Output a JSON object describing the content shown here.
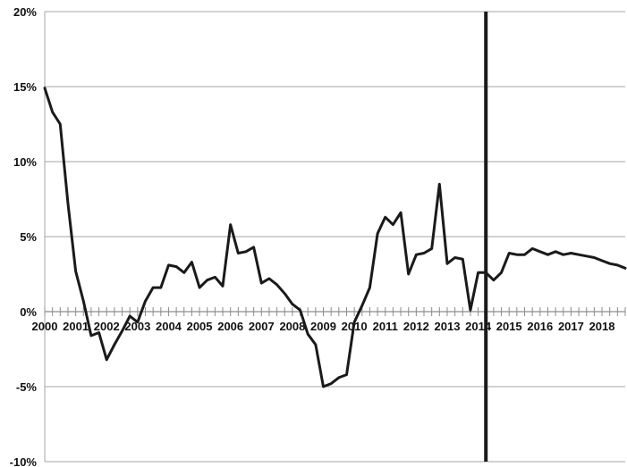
{
  "chart_data": {
    "type": "line",
    "title": "",
    "xlabel": "",
    "ylabel": "",
    "ylim": [
      -0.1,
      0.2
    ],
    "xlim": [
      2000.0,
      2018.75
    ],
    "grid": "horizontal",
    "y_ticks": [
      "20%",
      "15%",
      "10%",
      "5%",
      "0%",
      "-5%",
      "-10%"
    ],
    "x_ticks": [
      "2000",
      "2001",
      "2002",
      "2003",
      "2004",
      "2005",
      "2006",
      "2007",
      "2008",
      "2009",
      "2010",
      "2011",
      "2012",
      "2013",
      "2014",
      "2015",
      "2016",
      "2017",
      "2018"
    ],
    "vertical_marker_x": 2014.25,
    "line_color": "#1a1a1a",
    "series": [
      {
        "x": [
          2000.0,
          2000.25,
          2000.5,
          2000.75,
          2001.0,
          2001.25,
          2001.5,
          2001.75,
          2002.0,
          2002.25,
          2002.5,
          2002.75,
          2003.0,
          2003.25,
          2003.5,
          2003.75,
          2004.0,
          2004.25,
          2004.5,
          2004.75,
          2005.0,
          2005.25,
          2005.5,
          2005.75,
          2006.0,
          2006.25,
          2006.5,
          2006.75,
          2007.0,
          2007.25,
          2007.5,
          2007.75,
          2008.0,
          2008.25,
          2008.5,
          2008.75,
          2009.0,
          2009.25,
          2009.5,
          2009.75,
          2010.0,
          2010.25,
          2010.5,
          2010.75,
          2011.0,
          2011.25,
          2011.5,
          2011.75,
          2012.0,
          2012.25,
          2012.5,
          2012.75,
          2013.0,
          2013.25,
          2013.5,
          2013.75,
          2014.0,
          2014.25,
          2014.5,
          2014.75,
          2015.0,
          2015.25,
          2015.5,
          2015.75,
          2016.0,
          2016.25,
          2016.5,
          2016.75,
          2017.0,
          2017.25,
          2017.5,
          2017.75,
          2018.0,
          2018.25,
          2018.5,
          2018.75
        ],
        "values": [
          0.149,
          0.133,
          0.125,
          0.072,
          0.027,
          0.007,
          -0.016,
          -0.014,
          -0.032,
          -0.022,
          -0.013,
          -0.003,
          -0.007,
          0.007,
          0.016,
          0.016,
          0.031,
          0.03,
          0.026,
          0.033,
          0.016,
          0.021,
          0.023,
          0.017,
          0.058,
          0.039,
          0.04,
          0.043,
          0.019,
          0.022,
          0.018,
          0.012,
          0.005,
          0.001,
          -0.015,
          -0.022,
          -0.05,
          -0.048,
          -0.044,
          -0.042,
          -0.007,
          0.004,
          0.016,
          0.052,
          0.063,
          0.058,
          0.066,
          0.025,
          0.038,
          0.039,
          0.042,
          0.085,
          0.032,
          0.036,
          0.035,
          0.001,
          0.026,
          0.026,
          0.021,
          0.026,
          0.039,
          0.038,
          0.038,
          0.042,
          0.04,
          0.038,
          0.04,
          0.038,
          0.039,
          0.038,
          0.037,
          0.036,
          0.034,
          0.032,
          0.031,
          0.029
        ]
      }
    ]
  }
}
